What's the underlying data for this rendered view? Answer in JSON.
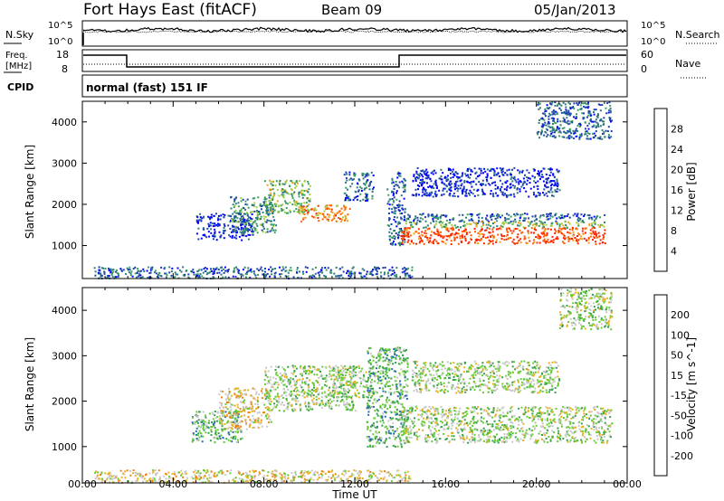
{
  "header": {
    "station": "Fort Hays East (fitACF)",
    "beam": "Beam 09",
    "date": "05/Jan/2013"
  },
  "strips": {
    "noise": {
      "left_label": "N.Sky",
      "right_label": "N.Search",
      "left_ticks": [
        "10^5",
        "10^0"
      ],
      "right_ticks": [
        "10^5",
        "10^0"
      ]
    },
    "freq": {
      "left_label_1": "Freq.",
      "left_label_2": "[MHz]",
      "right_label": "Nave",
      "left_ticks": [
        "18",
        "8"
      ],
      "right_ticks": [
        "60",
        "0"
      ]
    },
    "cpid": {
      "label": "CPID",
      "value": "normal (fast) 151 IF"
    }
  },
  "colors": {
    "power": [
      "#0000ff",
      "#1b3fb0",
      "#2e7a7a",
      "#3aa060",
      "#a0d040",
      "#f0a020",
      "#ff6000",
      "#ff2000"
    ],
    "velocity": [
      "#1020c0",
      "#2a6ab8",
      "#36a050",
      "#66cc33",
      "#c8c8c8",
      "#e8b020",
      "#f08010",
      "#ff6000",
      "#ff0000"
    ]
  },
  "chart_data": [
    {
      "type": "heatmap",
      "name": "power",
      "xlabel": "",
      "ylabel": "Slant Range [km]",
      "x_ticks": [
        "00:00",
        "04:00",
        "08:00",
        "12:00",
        "16:00",
        "20:00",
        "00:00"
      ],
      "xlim_hours": [
        0,
        24
      ],
      "ylim": [
        200,
        4500
      ],
      "y_ticks": [
        1000,
        2000,
        3000,
        4000
      ],
      "colorbar": {
        "label": "Power [dB]",
        "ticks": [
          "28",
          "24",
          "20",
          "16",
          "12",
          "8",
          "4"
        ]
      },
      "bands": [
        {
          "t0": 5.0,
          "t1": 7.5,
          "r0": 1150,
          "r1": 1800,
          "level": 1
        },
        {
          "t0": 6.5,
          "t1": 8.5,
          "r0": 1300,
          "r1": 2200,
          "level": 3
        },
        {
          "t0": 8.0,
          "t1": 10.0,
          "r0": 1800,
          "r1": 2600,
          "level": 4
        },
        {
          "t0": 9.5,
          "t1": 11.8,
          "r0": 1600,
          "r1": 2000,
          "level": 6
        },
        {
          "t0": 11.5,
          "t1": 12.8,
          "r0": 2100,
          "r1": 2800,
          "level": 2
        },
        {
          "t0": 13.4,
          "t1": 14.2,
          "r0": 1000,
          "r1": 2800,
          "level": 2
        },
        {
          "t0": 14.0,
          "t1": 23.0,
          "r0": 1600,
          "r1": 1800,
          "level": 2
        },
        {
          "t0": 14.0,
          "t1": 23.0,
          "r0": 1450,
          "r1": 1600,
          "level": 4
        },
        {
          "t0": 14.0,
          "t1": 23.0,
          "r0": 1050,
          "r1": 1450,
          "level": 7
        },
        {
          "t0": 14.5,
          "t1": 21.0,
          "r0": 2200,
          "r1": 2900,
          "level": 1
        },
        {
          "t0": 20.0,
          "t1": 23.3,
          "r0": 3600,
          "r1": 4500,
          "level": 2
        },
        {
          "t0": 0.5,
          "t1": 14.5,
          "r0": 220,
          "r1": 500,
          "level": 2
        }
      ]
    },
    {
      "type": "heatmap",
      "name": "velocity",
      "xlabel": "Time UT",
      "ylabel": "Slant Range [km]",
      "x_ticks": [
        "00:00",
        "04:00",
        "08:00",
        "12:00",
        "16:00",
        "20:00",
        "00:00"
      ],
      "xlim_hours": [
        0,
        24
      ],
      "ylim": [
        200,
        4500
      ],
      "y_ticks": [
        1000,
        2000,
        3000,
        4000
      ],
      "colorbar": {
        "label": "Velocity [m s^-1]",
        "ticks": [
          "200",
          "100",
          "50",
          "15",
          "-15",
          "-50",
          "-100",
          "-200"
        ]
      },
      "bands": [
        {
          "t0": 4.8,
          "t1": 7.0,
          "r0": 1100,
          "r1": 1800,
          "level": 3
        },
        {
          "t0": 6.0,
          "t1": 8.3,
          "r0": 1400,
          "r1": 2300,
          "level": 5
        },
        {
          "t0": 8.0,
          "t1": 12.0,
          "r0": 1800,
          "r1": 2800,
          "level": 4
        },
        {
          "t0": 11.0,
          "t1": 12.8,
          "r0": 2100,
          "r1": 2800,
          "level": 4
        },
        {
          "t0": 12.5,
          "t1": 14.3,
          "r0": 1000,
          "r1": 3200,
          "level": 3
        },
        {
          "t0": 14.0,
          "t1": 23.3,
          "r0": 1100,
          "r1": 1900,
          "level": 4
        },
        {
          "t0": 14.5,
          "t1": 21.0,
          "r0": 2200,
          "r1": 2900,
          "level": 4
        },
        {
          "t0": 21.0,
          "t1": 23.3,
          "r0": 3600,
          "r1": 4500,
          "level": 4
        },
        {
          "t0": 0.5,
          "t1": 14.5,
          "r0": 220,
          "r1": 500,
          "level": 5
        }
      ]
    }
  ]
}
